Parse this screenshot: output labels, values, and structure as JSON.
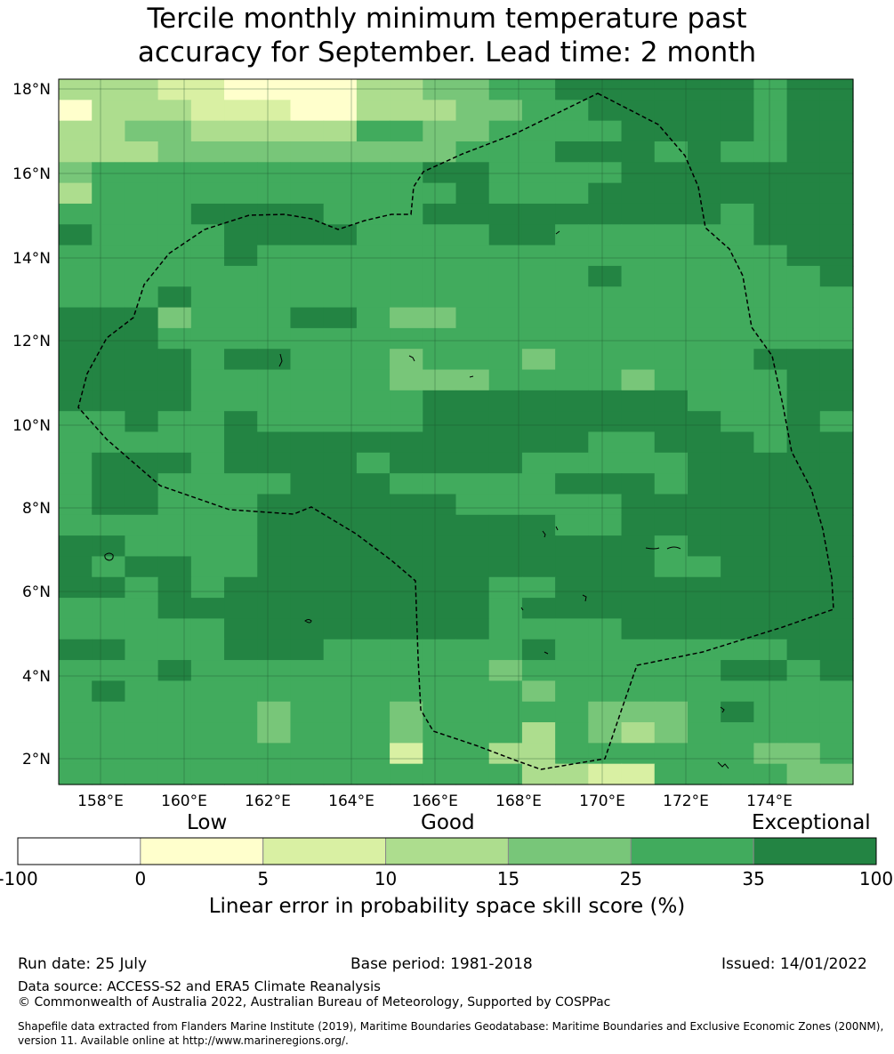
{
  "title": {
    "line1": "Tercile monthly minimum temperature past",
    "line2": "accuracy for September. Lead time: 2 month"
  },
  "map": {
    "lat_labels": [
      "18°N",
      "16°N",
      "14°N",
      "12°N",
      "10°N",
      "8°N",
      "6°N",
      "4°N",
      "2°N"
    ],
    "lon_labels": [
      "158°E",
      "160°E",
      "162°E",
      "164°E",
      "166°E",
      "168°E",
      "170°E",
      "172°E",
      "174°E"
    ]
  },
  "colorbar": {
    "categories": {
      "low": "Low",
      "good": "Good",
      "exceptional": "Exceptional"
    },
    "tick_labels": [
      "-100",
      "0",
      "5",
      "10",
      "15",
      "25",
      "35",
      "100"
    ],
    "colors": [
      "#ffffff",
      "#ffffcc",
      "#d9f0a3",
      "#addd8e",
      "#78c679",
      "#41ab5d",
      "#238443"
    ],
    "xlabel": "Linear error in probability space skill score (%)"
  },
  "footer": {
    "run_date": "Run date: 25 July",
    "base_period": "Base period: 1981-2018",
    "issued": "Issued: 14/01/2022",
    "data_source": "Data source: ACCESS-S2 and ERA5 Climate Reanalysis",
    "copyright": "© Commonwealth of Australia 2022, Australian Bureau of Meteorology, Supported by COSPPac",
    "shapefile": "Shapefile data extracted from Flanders Marine Institute (2019), Maritime Boundaries Geodatabase: Maritime Boundaries and Exclusive Economic Zones (200NM), version 11. Available online at http://www.marineregions.org/."
  }
}
